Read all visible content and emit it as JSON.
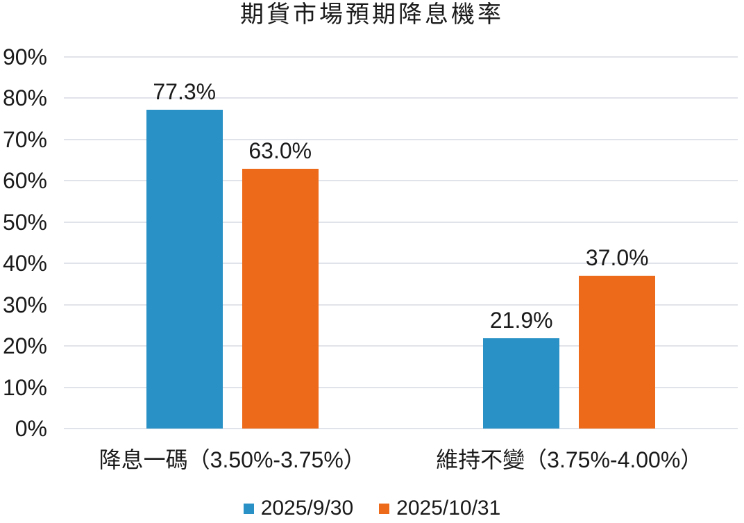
{
  "chart_data": {
    "type": "bar",
    "title": "期貨市場預期降息機率",
    "categories": [
      "降息一碼（3.50%-3.75%）",
      "維持不變（3.75%-4.00%）"
    ],
    "series": [
      {
        "name": "2025/9/30",
        "color": "#2991C6",
        "values": [
          77.3,
          21.9
        ],
        "labels": [
          "77.3%",
          "21.9%"
        ]
      },
      {
        "name": "2025/10/31",
        "color": "#EC6A1A",
        "values": [
          63.0,
          37.0
        ],
        "labels": [
          "63.0%",
          "37.0%"
        ]
      }
    ],
    "xlabel": "",
    "ylabel": "",
    "ylim": [
      0,
      90
    ],
    "yticks": [
      {
        "value": 0,
        "label": "0%"
      },
      {
        "value": 10,
        "label": "10%"
      },
      {
        "value": 20,
        "label": "20%"
      },
      {
        "value": 30,
        "label": "30%"
      },
      {
        "value": 40,
        "label": "40%"
      },
      {
        "value": 50,
        "label": "50%"
      },
      {
        "value": 60,
        "label": "60%"
      },
      {
        "value": 70,
        "label": "70%"
      },
      {
        "value": 80,
        "label": "80%"
      },
      {
        "value": 90,
        "label": "90%"
      }
    ],
    "grid": true,
    "legend_position": "bottom"
  },
  "colors": {
    "gridline": "#e1e3ea",
    "text": "#1a1a1a"
  }
}
